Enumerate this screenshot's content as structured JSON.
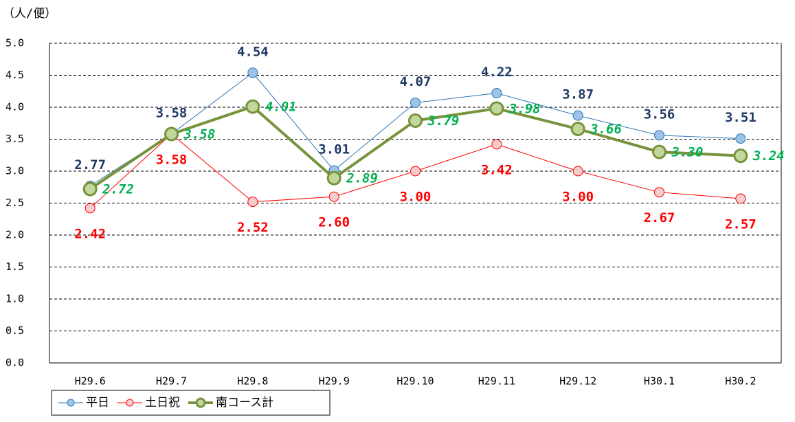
{
  "chart_data": {
    "type": "line",
    "y_label": "（人/便）",
    "categories": [
      "H29.6",
      "H29.7",
      "H29.8",
      "H29.9",
      "H29.10",
      "H29.11",
      "H29.12",
      "H30.1",
      "H30.2"
    ],
    "ylim": [
      0,
      5
    ],
    "yticks": [
      {
        "value": 0,
        "label": "0.0"
      },
      0.5,
      {
        "value": 1,
        "label": "1.0"
      },
      1.5,
      {
        "value": 2,
        "label": "2.0"
      },
      2.5,
      {
        "value": 3,
        "label": "3.0"
      },
      3.5,
      {
        "value": 4,
        "label": "4.0"
      },
      4.5,
      {
        "value": 5,
        "label": "5.0"
      }
    ],
    "grid": true,
    "legend": "bottom-left",
    "series": [
      {
        "name": "平日",
        "color": "#2e75b6",
        "values": [
          2.77,
          3.58,
          4.54,
          3.01,
          4.07,
          4.22,
          3.87,
          3.56,
          3.51
        ]
      },
      {
        "name": "土日祝",
        "color": "#ff0000",
        "values": [
          2.42,
          3.58,
          2.52,
          2.6,
          3.0,
          3.42,
          3.0,
          2.67,
          2.57
        ],
        "value_labels": [
          "2.42",
          "3.58",
          "2.52",
          "2.60",
          "3.00",
          "3.42",
          "3.00",
          "2.67",
          "2.57"
        ]
      },
      {
        "name": "南コース計",
        "color": "#77933c",
        "values": [
          2.72,
          3.58,
          4.01,
          2.89,
          3.79,
          3.98,
          3.66,
          3.3,
          3.24
        ],
        "value_labels": [
          "2.72",
          "3.58",
          "4.01",
          "2.89",
          "3.79",
          "3.98",
          "3.66",
          "3.30",
          "3.24"
        ]
      }
    ]
  }
}
